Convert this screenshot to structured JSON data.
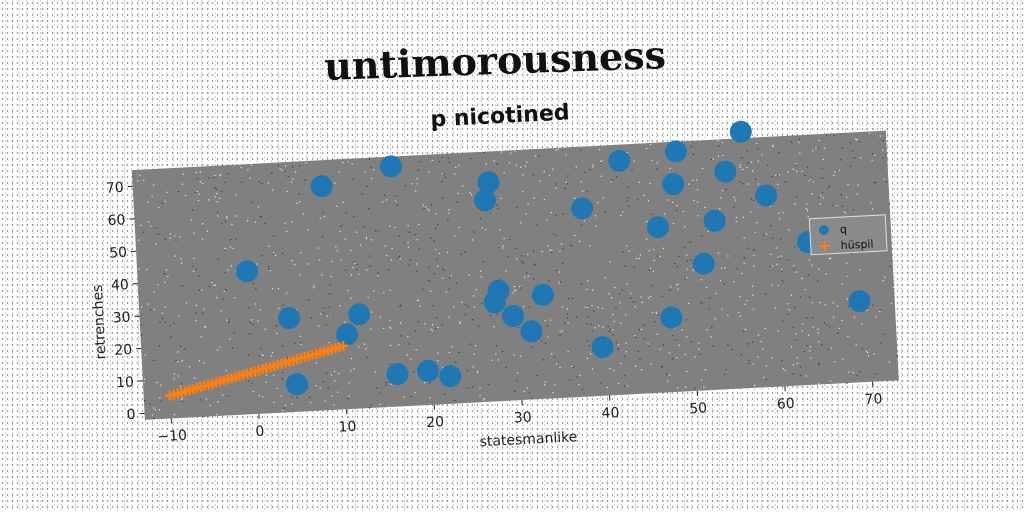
{
  "title": "untimorousness",
  "chart_data": {
    "type": "scatter",
    "subtitle": "p nicotined",
    "xlabel": "statesmanlike",
    "ylabel": "retrenches",
    "xlim": [
      -13,
      73
    ],
    "ylim": [
      -2,
      75
    ],
    "xticks": [
      -10,
      0,
      10,
      20,
      30,
      40,
      50,
      60,
      70
    ],
    "yticks": [
      0,
      10,
      20,
      30,
      40,
      50,
      60,
      70
    ],
    "grid": false,
    "legend_position": "center-right",
    "plot_background": "#808080",
    "series": [
      {
        "name": "q",
        "color": "#1f77b4",
        "marker": "circle",
        "points": [
          [
            -0.5,
            42
          ],
          [
            8.5,
            67
          ],
          [
            16.5,
            72
          ],
          [
            27.5,
            65.5
          ],
          [
            27.0,
            60
          ],
          [
            42.5,
            70
          ],
          [
            49.0,
            72
          ],
          [
            56.5,
            77
          ],
          [
            38.0,
            56
          ],
          [
            48.5,
            62
          ],
          [
            54.5,
            65
          ],
          [
            59.0,
            57
          ],
          [
            46.5,
            49
          ],
          [
            53.0,
            50
          ],
          [
            51.5,
            37
          ],
          [
            63.5,
            42
          ],
          [
            69.0,
            23
          ],
          [
            4.0,
            27
          ],
          [
            12.0,
            27
          ],
          [
            10.5,
            21
          ],
          [
            28.0,
            32
          ],
          [
            27.5,
            28.5
          ],
          [
            29.5,
            24
          ],
          [
            33.0,
            30
          ],
          [
            31.5,
            19
          ],
          [
            47.5,
            21
          ],
          [
            39.5,
            13
          ],
          [
            4.5,
            6.5
          ],
          [
            16.0,
            8
          ],
          [
            19.5,
            8.5
          ],
          [
            22.0,
            6.5
          ]
        ]
      },
      {
        "name": "hüspil",
        "color": "#ff7f0e",
        "marker": "plus",
        "x_start": -10,
        "x_end": 10,
        "y_start": 5,
        "y_end": 17.5,
        "count": 46
      }
    ]
  }
}
